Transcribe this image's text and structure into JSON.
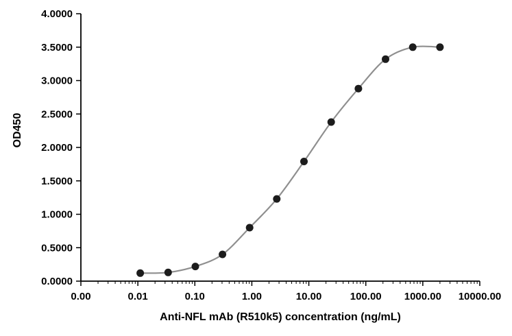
{
  "chart_data": {
    "type": "scatter",
    "subtype": "dose-response-curve",
    "title": "",
    "xlabel": "Anti-NFL mAb (R510k5) concentration (ng/mL)",
    "ylabel": "OD450",
    "x_scale": "log",
    "x_tick_labels": [
      "0.00",
      "0.01",
      "0.10",
      "1.00",
      "10.00",
      "100.00",
      "1000.00",
      "10000.00"
    ],
    "x_decade_min_exponent": -3,
    "y_ticks": [
      0.0,
      0.5,
      1.0,
      1.5,
      2.0,
      2.5,
      3.0,
      3.5,
      4.0
    ],
    "y_tick_labels": [
      "0.0000",
      "0.5000",
      "1.0000",
      "1.5000",
      "2.0000",
      "2.5000",
      "3.0000",
      "3.5000",
      "4.0000"
    ],
    "ylim": [
      0.0,
      4.0
    ],
    "grid": "off",
    "legend": "none",
    "colors": {
      "axis": "#000000",
      "curve_line": "#8f8f8f",
      "marker": "#1c1c1c",
      "background": "#ffffff"
    },
    "series": [
      {
        "name": "Anti-NFL mAb (R510k5)",
        "marker": "circle",
        "points": [
          {
            "x": 0.011,
            "y": 0.12
          },
          {
            "x": 0.034,
            "y": 0.13
          },
          {
            "x": 0.102,
            "y": 0.22
          },
          {
            "x": 0.305,
            "y": 0.4
          },
          {
            "x": 0.914,
            "y": 0.8
          },
          {
            "x": 2.74,
            "y": 1.23
          },
          {
            "x": 8.23,
            "y": 1.79
          },
          {
            "x": 24.7,
            "y": 2.38
          },
          {
            "x": 74.1,
            "y": 2.88
          },
          {
            "x": 222,
            "y": 3.32
          },
          {
            "x": 667,
            "y": 3.5
          },
          {
            "x": 2000,
            "y": 3.5
          }
        ]
      }
    ]
  }
}
